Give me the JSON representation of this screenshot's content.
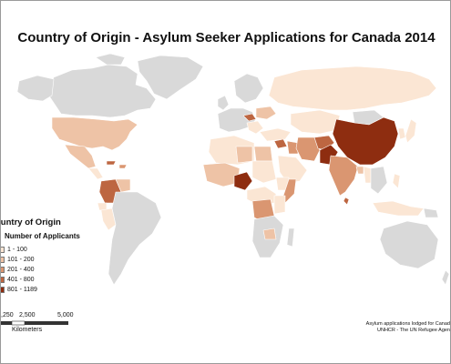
{
  "map": {
    "title": "Country of Origin - Asylum Seeker Applications for Canada 2014",
    "legend": {
      "title": "ountry of Origin",
      "subtitle": "Number of Applicants",
      "classes": [
        {
          "label": "1 - 100",
          "color": "#fbe6d4"
        },
        {
          "label": "101 - 200",
          "color": "#eec3a6"
        },
        {
          "label": "201 - 400",
          "color": "#da9671"
        },
        {
          "label": "401 - 800",
          "color": "#bd6641"
        },
        {
          "label": "801 - 1189",
          "color": "#8e2d10"
        }
      ]
    },
    "scale": {
      "ticks": [
        ",250",
        "2,500",
        "5,000"
      ],
      "unit": "Kilometers"
    },
    "source": {
      "line1": "Asylum applications lodged for Canad",
      "line2": "UNHCR - The UN Refugee Agen"
    },
    "colors": {
      "no_data": "#d9d9d9",
      "border": "#ffffff"
    }
  }
}
